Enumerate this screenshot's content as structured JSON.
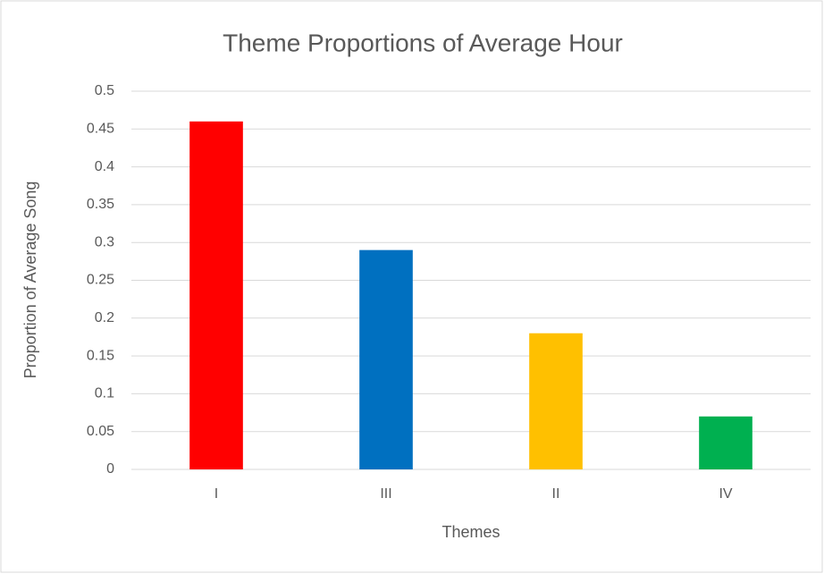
{
  "chart_data": {
    "type": "bar",
    "title": "Theme Proportions of Average Hour",
    "x_label": "Themes",
    "y_label": "Proportion of Average Song",
    "categories": [
      "I",
      "III",
      "II",
      "IV"
    ],
    "values": [
      0.46,
      0.29,
      0.18,
      0.07
    ],
    "colors": [
      "#ff0000",
      "#0070c0",
      "#ffc000",
      "#00b050"
    ],
    "ylim": [
      0,
      0.5
    ],
    "yticks": [
      0,
      0.05,
      0.1,
      0.15,
      0.2,
      0.25,
      0.3,
      0.35,
      0.4,
      0.45,
      0.5
    ],
    "grid": true
  }
}
